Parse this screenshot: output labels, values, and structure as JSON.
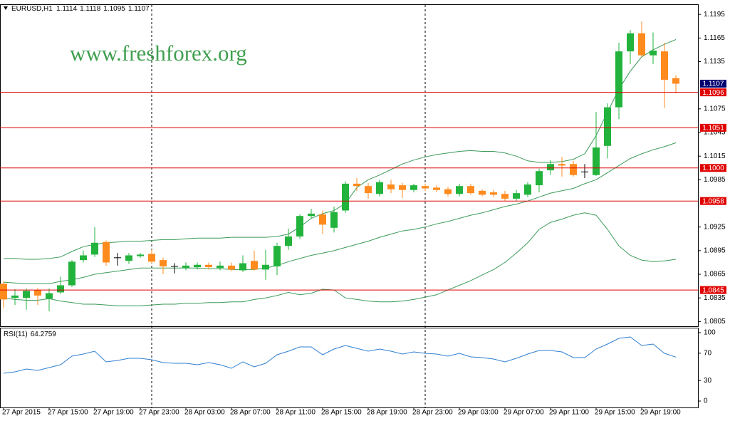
{
  "chart_data": [
    {
      "type": "candlestick",
      "title": "EURUSD,H1",
      "annotation": "www.freshforex.org",
      "categories": [
        "27 Apr 2015",
        null,
        null,
        null,
        "27 Apr 15:00",
        null,
        null,
        null,
        "27 Apr 19:00",
        null,
        null,
        null,
        "27 Apr 23:00",
        null,
        null,
        null,
        "28 Apr 03:00",
        null,
        null,
        null,
        "28 Apr 07:00",
        null,
        null,
        null,
        "28 Apr 11:00",
        null,
        null,
        null,
        "28 Apr 15:00",
        null,
        null,
        null,
        "28 Apr 19:00",
        null,
        null,
        null,
        "28 Apr 23:00",
        null,
        null,
        null,
        "29 Apr 03:00",
        null,
        null,
        null,
        "29 Apr 07:00",
        null,
        null,
        null,
        "29 Apr 11:00",
        null,
        null,
        null,
        "29 Apr 15:00",
        null,
        null,
        null,
        "29 Apr 19:00",
        null,
        null,
        null
      ],
      "open": [
        1.0853,
        1.0835,
        1.0835,
        1.0845,
        1.0834,
        1.0842,
        1.0851,
        1.0883,
        1.089,
        1.0906,
        1.0886,
        1.0882,
        1.0888,
        1.0891,
        1.0883,
        1.0875,
        1.0873,
        1.0874,
        1.0877,
        1.0873,
        1.0876,
        1.087,
        1.0882,
        1.0871,
        1.0875,
        1.0901,
        1.0913,
        1.0939,
        1.0941,
        1.0924,
        1.0946,
        1.098,
        1.0977,
        1.0967,
        1.0979,
        1.0978,
        1.0972,
        1.0977,
        1.0975,
        1.0973,
        1.0967,
        1.0977,
        1.0971,
        1.0969,
        1.0967,
        1.0961,
        1.0966,
        1.0978,
        1.0997,
        1.1005,
        1.1005,
        1.0995,
        1.0991,
        1.1028,
        1.1077,
        1.1148,
        1.1171,
        1.1143,
        1.1148,
        1.1114
      ],
      "high": [
        1.0856,
        1.0846,
        1.0847,
        1.0848,
        1.0847,
        1.0862,
        1.0883,
        1.0895,
        1.0925,
        1.0908,
        1.0892,
        1.0892,
        1.0892,
        1.0896,
        1.0886,
        1.0879,
        1.088,
        1.088,
        1.088,
        1.0881,
        1.088,
        1.0889,
        1.0895,
        1.0896,
        1.0905,
        1.0923,
        1.0941,
        1.0948,
        1.0946,
        1.0951,
        1.0983,
        1.0987,
        1.0981,
        1.0985,
        1.0985,
        1.0981,
        1.098,
        1.098,
        1.0978,
        1.0976,
        1.098,
        1.098,
        1.0973,
        1.0972,
        1.0971,
        1.0972,
        1.0982,
        1.0999,
        1.101,
        1.1014,
        1.1009,
        1.1005,
        1.1071,
        1.1082,
        1.1159,
        1.1175,
        1.1186,
        1.1172,
        1.1159,
        1.1118
      ],
      "low": [
        1.0822,
        1.0826,
        1.082,
        1.0826,
        1.0818,
        1.084,
        1.0849,
        1.088,
        1.0887,
        1.0876,
        1.0876,
        1.0878,
        1.0886,
        1.0879,
        1.0865,
        1.0866,
        1.087,
        1.0871,
        1.0871,
        1.087,
        1.0869,
        1.0868,
        1.087,
        1.0858,
        1.0864,
        1.0896,
        1.091,
        1.0936,
        1.0916,
        1.0918,
        1.0943,
        1.0971,
        1.0961,
        1.0964,
        1.0968,
        1.0962,
        1.0969,
        1.0971,
        1.0969,
        1.0964,
        1.0964,
        1.0966,
        1.0964,
        1.0963,
        1.0958,
        1.0958,
        1.0963,
        1.0969,
        1.0991,
        1.0989,
        1.0989,
        1.0987,
        1.099,
        1.1012,
        1.1062,
        1.1132,
        1.1141,
        1.1132,
        1.1076,
        1.1095
      ],
      "close": [
        1.0833,
        1.0838,
        1.0844,
        1.0838,
        1.0841,
        1.0851,
        1.0881,
        1.0889,
        1.0905,
        1.088,
        1.0886,
        1.0889,
        1.089,
        1.0881,
        1.0875,
        1.0875,
        1.0876,
        1.0877,
        1.0874,
        1.0876,
        1.0871,
        1.0879,
        1.0871,
        1.0877,
        1.0901,
        1.0913,
        1.0939,
        1.0942,
        1.0928,
        1.0944,
        1.098,
        1.0977,
        1.0968,
        1.0982,
        1.0973,
        1.0972,
        1.0978,
        1.0974,
        1.0972,
        1.0967,
        1.0977,
        1.0968,
        1.0966,
        1.0966,
        1.0961,
        1.0968,
        1.0979,
        1.0996,
        1.1005,
        1.1003,
        1.0991,
        1.0995,
        1.1026,
        1.1077,
        1.1148,
        1.1171,
        1.1143,
        1.1149,
        1.1112,
        1.1107
      ],
      "up_color": "#22b33c",
      "down_color": "#ff8a1e",
      "doji_color": "#000000",
      "overlays": [
        {
          "color": "#3c9a5a",
          "values": [
            1.0885,
            1.0885,
            1.0884,
            1.0884,
            1.0885,
            1.0887,
            1.0894,
            1.09,
            1.0903,
            1.0905,
            1.0906,
            1.0907,
            1.0907,
            1.0908,
            1.0909,
            1.0909,
            1.091,
            1.0911,
            1.0911,
            1.0911,
            1.0912,
            1.0912,
            1.0912,
            1.0912,
            1.0913,
            1.0916,
            1.0925,
            1.0936,
            1.0942,
            1.0946,
            1.0955,
            1.0975,
            1.0985,
            1.0991,
            1.0998,
            1.1005,
            1.101,
            1.1014,
            1.1017,
            1.1019,
            1.1021,
            1.1022,
            1.1021,
            1.1021,
            1.1019,
            1.1015,
            1.1009,
            1.1007,
            1.1007,
            1.1008,
            1.1011,
            1.1018,
            1.1041,
            1.1071,
            1.11,
            1.1123,
            1.1141,
            1.115,
            1.1157,
            1.1163
          ]
        },
        {
          "color": "#3c9a5a",
          "values": [
            1.0855,
            1.0854,
            1.0853,
            1.0853,
            1.0853,
            1.0856,
            1.0858,
            1.0861,
            1.0865,
            1.0867,
            1.0869,
            1.0871,
            1.0873,
            1.0873,
            1.0873,
            1.0873,
            1.0873,
            1.0873,
            1.0872,
            1.0872,
            1.0871,
            1.0871,
            1.0871,
            1.0873,
            1.0876,
            1.0881,
            1.0885,
            1.0889,
            1.0892,
            1.0895,
            1.0899,
            1.0903,
            1.0907,
            1.0912,
            1.0916,
            1.092,
            1.0922,
            1.0925,
            1.0929,
            1.0932,
            1.0936,
            1.094,
            1.0943,
            1.0947,
            1.0951,
            1.0954,
            1.0958,
            1.0963,
            1.0968,
            1.0971,
            1.0974,
            1.098,
            1.0985,
            1.0994,
            1.1003,
            1.1012,
            1.1018,
            1.1023,
            1.1027,
            1.1032
          ]
        },
        {
          "color": "#3c9a5a",
          "values": [
            1.0835,
            1.0833,
            1.0832,
            1.0832,
            1.0834,
            1.0831,
            1.0829,
            1.0827,
            1.0827,
            1.0826,
            1.0825,
            1.0825,
            1.0825,
            1.0826,
            1.0827,
            1.0827,
            1.0828,
            1.0828,
            1.0829,
            1.0829,
            1.083,
            1.083,
            1.0833,
            1.0835,
            1.0838,
            1.0842,
            1.0839,
            1.0841,
            1.0846,
            1.0845,
            1.0835,
            1.0833,
            1.0831,
            1.083,
            1.083,
            1.0831,
            1.0833,
            1.0836,
            1.0839,
            1.0845,
            1.0851,
            1.0857,
            1.0864,
            1.0871,
            1.088,
            1.0892,
            1.0905,
            1.0922,
            1.0931,
            1.0935,
            1.094,
            1.0943,
            1.094,
            1.0922,
            1.0901,
            1.0889,
            1.0883,
            1.0881,
            1.0882,
            1.0884
          ]
        }
      ],
      "levels": [
        1.1096,
        1.1051,
        {
          "value": 1.1,
          "label": "1.1000"
        },
        1.0958,
        1.0845
      ],
      "level_color": "#e00000",
      "last_price_color": "#000070",
      "ylim": [
        1.0799,
        1.1206
      ],
      "yticks": [
        1.1195,
        1.1165,
        1.1135,
        1.1075,
        1.1045,
        1.1015,
        1.0985,
        1.0925,
        1.0895,
        1.0865,
        1.0835,
        1.0805
      ]
    },
    {
      "type": "line",
      "title": "RSI(11)",
      "color": "#2f7fd0",
      "values": [
        40.6,
        42.7,
        46.9,
        44.8,
        49.0,
        53.1,
        65.6,
        68.8,
        72.9,
        57.3,
        59.4,
        62.5,
        62.5,
        60.4,
        56.3,
        55.2,
        55.2,
        53.1,
        56.3,
        53.1,
        47.9,
        57.3,
        50.0,
        55.2,
        67.7,
        72.9,
        79.2,
        79.2,
        67.7,
        76.0,
        81.3,
        77.1,
        72.9,
        76.0,
        72.9,
        68.8,
        71.9,
        69.8,
        68.8,
        65.6,
        69.8,
        64.6,
        63.5,
        61.5,
        57.3,
        62.5,
        68.8,
        74.0,
        74.0,
        71.9,
        63.5,
        63.5,
        76.0,
        83.3,
        91.7,
        93.8,
        81.3,
        83.3,
        69.8,
        64.2759
      ],
      "ylim": [
        0,
        100
      ],
      "yticks": [
        100,
        70,
        30,
        0
      ]
    }
  ]
}
